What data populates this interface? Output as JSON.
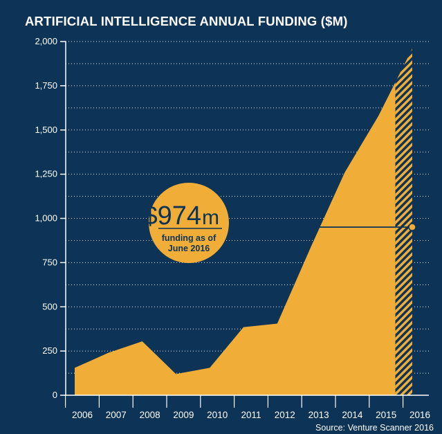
{
  "chart_data": {
    "type": "area",
    "title": "ARTIFICIAL INTELLIGENCE ANNUAL FUNDING ($M)",
    "xlabel": "",
    "ylabel": "",
    "categories": [
      "2006",
      "2007",
      "2008",
      "2009",
      "2010",
      "2011",
      "2012",
      "2013",
      "2014",
      "2015",
      "2016"
    ],
    "values": [
      155,
      240,
      305,
      120,
      155,
      385,
      405,
      840,
      1260,
      1580,
      1960
    ],
    "ylim": [
      0,
      2000
    ],
    "yticks": [
      0,
      250,
      500,
      750,
      1000,
      1250,
      1500,
      1750,
      2000
    ],
    "ytick_labels": [
      "0",
      "250",
      "500",
      "750",
      "1,000",
      "1,250",
      "1,500",
      "1,750",
      "2,000"
    ],
    "grid": true,
    "projected_from": "2015.5",
    "annotation": {
      "value": 974,
      "amount": "$974",
      "unit": "m",
      "label_line1": "funding as of",
      "label_line2": "June 2016"
    },
    "source": "Source: Venture Scanner 2016",
    "colors": {
      "background": "#0d3356",
      "fill": "#f0ad37",
      "text": "#ffffff",
      "annotation_text": "#0d3356"
    }
  }
}
